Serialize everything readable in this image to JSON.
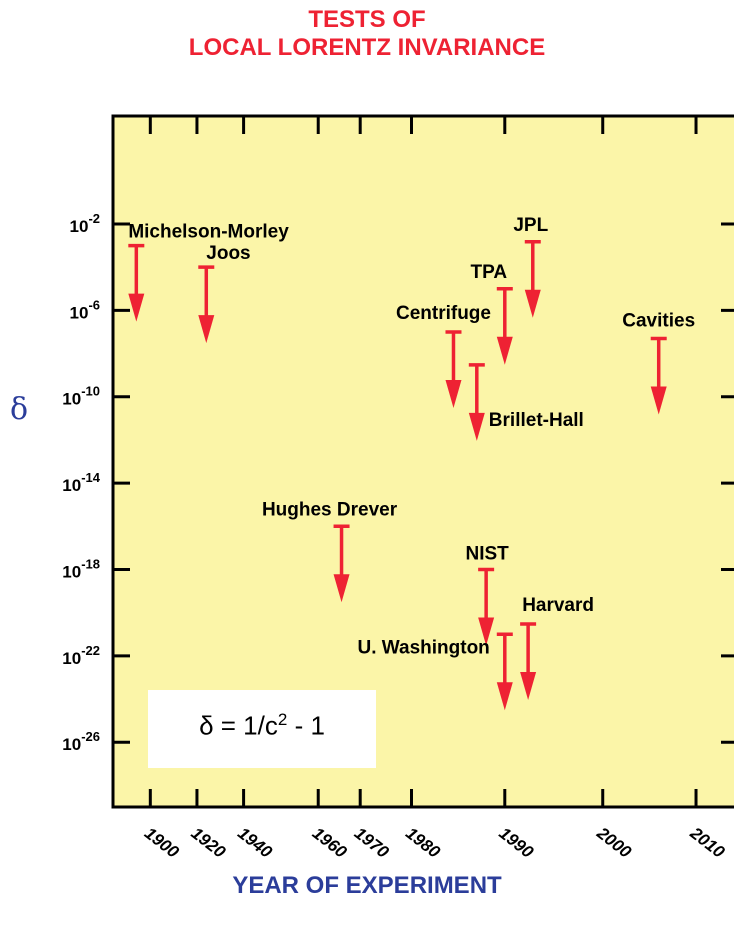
{
  "chart_data": {
    "type": "scatter",
    "title": "TESTS OF",
    "subtitle": "LOCAL LORENTZ INVARIANCE",
    "xlabel": "YEAR OF EXPERIMENT",
    "ylabel": "δ",
    "yscale": "log",
    "xlim": [
      1882,
      2016
    ],
    "ylim": [
      1e-29,
      1000.0
    ],
    "x_ticks": [
      {
        "value": 1890,
        "label": "1900"
      },
      {
        "value": 1900,
        "label": "1920"
      },
      {
        "value": 1910,
        "label": "1940"
      },
      {
        "value": 1926,
        "label": "1960"
      },
      {
        "value": 1935,
        "label": "1970"
      },
      {
        "value": 1946,
        "label": "1980"
      },
      {
        "value": 1966,
        "label": "1990"
      },
      {
        "value": 1987,
        "label": "2000"
      },
      {
        "value": 2007,
        "label": "2010"
      }
    ],
    "y_ticks": [
      {
        "value": 0.01,
        "base": "10",
        "exp": "-2"
      },
      {
        "value": 1e-06,
        "base": "10",
        "exp": "-6"
      },
      {
        "value": 1e-10,
        "base": "10",
        "exp": "-10"
      },
      {
        "value": 1e-14,
        "base": "10",
        "exp": "-14"
      },
      {
        "value": 1e-18,
        "base": "10",
        "exp": "-18"
      },
      {
        "value": 1e-22,
        "base": "10",
        "exp": "-22"
      },
      {
        "value": 1e-26,
        "base": "10",
        "exp": "-26"
      }
    ],
    "points": [
      {
        "name": "Michelson-Morley",
        "x": 1887,
        "y": 0.001,
        "type": "upper_limit"
      },
      {
        "name": "Joos",
        "x": 1902,
        "y": 0.0001,
        "type": "upper_limit"
      },
      {
        "name": "Hughes Drever",
        "x": 1931,
        "y": 1e-16,
        "type": "upper_limit"
      },
      {
        "name": "Centrifuge",
        "x": 1955,
        "y": 1e-07,
        "type": "upper_limit"
      },
      {
        "name": "Brillet-Hall",
        "x": 1960,
        "y": 3e-09,
        "type": "upper_limit"
      },
      {
        "name": "NIST",
        "x": 1962,
        "y": 1e-18,
        "type": "upper_limit"
      },
      {
        "name": "TPA",
        "x": 1966,
        "y": 1e-05,
        "type": "upper_limit"
      },
      {
        "name": "U. Washington",
        "x": 1966,
        "y": 1e-21,
        "type": "upper_limit"
      },
      {
        "name": "Harvard",
        "x": 1971,
        "y": 3e-21,
        "type": "upper_limit"
      },
      {
        "name": "JPL",
        "x": 1972,
        "y": 0.0015,
        "type": "upper_limit"
      },
      {
        "name": "Cavities",
        "x": 1999,
        "y": 5e-08,
        "type": "upper_limit"
      }
    ],
    "annotation": {
      "lhs": "δ = 1/c",
      "exp": "2",
      "rhs": " - 1"
    },
    "grid": false,
    "legend": "none",
    "colors": {
      "plot_bg": "#fbf5a8",
      "arrow": "#ee2233",
      "title": "#ee2233",
      "axis_label": "#2b3d9a"
    }
  }
}
